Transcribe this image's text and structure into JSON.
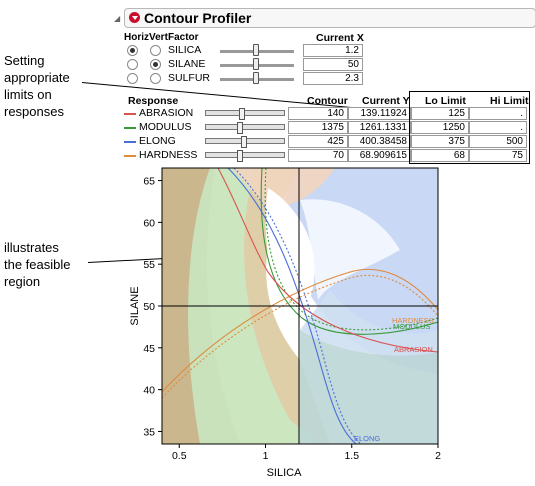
{
  "annotations": {
    "limits": [
      "Setting",
      "appropriate",
      "limits on",
      "responses"
    ],
    "feasible": [
      "illustrates",
      "the feasible",
      "region"
    ]
  },
  "header": {
    "title": "Contour Profiler"
  },
  "factors": {
    "headers": {
      "horiz": "Horiz",
      "vert": "Vert",
      "factor": "Factor",
      "current": "Current X"
    },
    "rows": [
      {
        "name": "SILICA",
        "horiz": true,
        "vert": false,
        "value": "1.2",
        "slider_level": 0.45
      },
      {
        "name": "SILANE",
        "horiz": false,
        "vert": true,
        "value": "50",
        "slider_level": 0.45
      },
      {
        "name": "SULFUR",
        "horiz": false,
        "vert": false,
        "value": "2.3",
        "slider_level": 0.45
      }
    ]
  },
  "responses": {
    "headers": {
      "response": "Response",
      "contour": "Contour",
      "current": "Current Y",
      "lo": "Lo Limit",
      "hi": "Hi Limit"
    },
    "rows": [
      {
        "name": "ABRASION",
        "color": "#d9534f",
        "contour": "140",
        "current": "139.11924",
        "lo": "125",
        "hi": "."
      },
      {
        "name": "MODULUS",
        "color": "#3a9a3a",
        "contour": "1375",
        "current": "1261.1331",
        "lo": "1250",
        "hi": "."
      },
      {
        "name": "ELONG",
        "color": "#4a6fd8",
        "contour": "425",
        "current": "400.38458",
        "lo": "375",
        "hi": "500"
      },
      {
        "name": "HARDNESS",
        "color": "#e08a3c",
        "contour": "70",
        "current": "68.909615",
        "lo": "68",
        "hi": "75"
      }
    ]
  },
  "chart_data": {
    "type": "contour",
    "xlabel": "SILICA",
    "ylabel": "SILANE",
    "xlim": [
      0.4,
      2.0
    ],
    "ylim": [
      33.5,
      66.5
    ],
    "xticks": [
      "0.5",
      "1",
      "1.5",
      "2"
    ],
    "xtick_values": [
      0.5,
      1,
      1.5,
      2
    ],
    "yticks": [
      "35",
      "40",
      "45",
      "50",
      "55",
      "60",
      "65"
    ],
    "ytick_values": [
      35,
      40,
      45,
      50,
      55,
      60,
      65
    ],
    "crosshair": {
      "x": 1.2,
      "y": 50
    },
    "curve_labels": [
      {
        "text": "HARDNESS",
        "color": "#e08a3c"
      },
      {
        "text": "MODULUS",
        "color": "#3a9a3a"
      },
      {
        "text": "ABRASION",
        "color": "#d9534f"
      },
      {
        "text": "ELONG",
        "color": "#4a6fd8"
      }
    ]
  }
}
